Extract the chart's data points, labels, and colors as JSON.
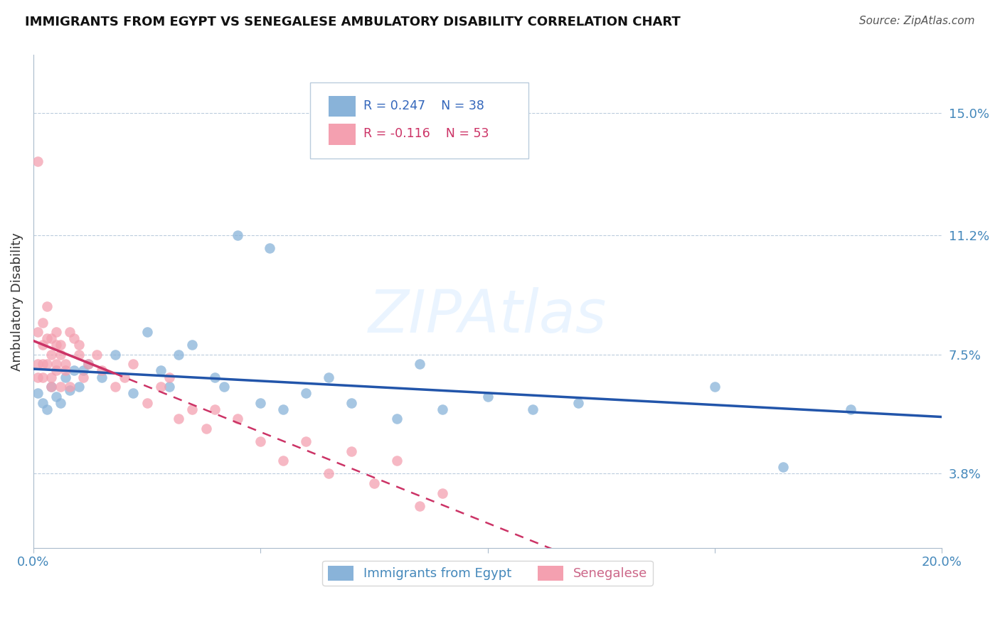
{
  "title": "IMMIGRANTS FROM EGYPT VS SENEGALESE AMBULATORY DISABILITY CORRELATION CHART",
  "source": "Source: ZipAtlas.com",
  "ylabel_label": "Ambulatory Disability",
  "xlim": [
    0.0,
    0.2
  ],
  "ylim": [
    0.015,
    0.168
  ],
  "xtick_positions": [
    0.0,
    0.05,
    0.1,
    0.15,
    0.2
  ],
  "xtick_labels": [
    "0.0%",
    "",
    "",
    "",
    "20.0%"
  ],
  "ytick_positions": [
    0.038,
    0.075,
    0.112,
    0.15
  ],
  "ytick_labels": [
    "3.8%",
    "7.5%",
    "11.2%",
    "15.0%"
  ],
  "legend1_r": "R = 0.247",
  "legend1_n": "N = 38",
  "legend2_r": "R = -0.116",
  "legend2_n": "N = 53",
  "blue_color": "#89B3D9",
  "pink_color": "#F4A0B0",
  "trend_blue": "#2255AA",
  "trend_pink": "#CC3366",
  "watermark": "ZIPAtlas",
  "egypt_x": [
    0.001,
    0.002,
    0.003,
    0.004,
    0.005,
    0.006,
    0.007,
    0.008,
    0.009,
    0.01,
    0.011,
    0.012,
    0.015,
    0.018,
    0.022,
    0.025,
    0.028,
    0.03,
    0.032,
    0.035,
    0.04,
    0.042,
    0.045,
    0.05,
    0.052,
    0.055,
    0.06,
    0.065,
    0.07,
    0.08,
    0.085,
    0.09,
    0.1,
    0.11,
    0.12,
    0.15,
    0.165,
    0.18
  ],
  "egypt_y": [
    0.063,
    0.06,
    0.058,
    0.065,
    0.062,
    0.06,
    0.068,
    0.064,
    0.07,
    0.065,
    0.07,
    0.072,
    0.068,
    0.075,
    0.063,
    0.082,
    0.07,
    0.065,
    0.075,
    0.078,
    0.068,
    0.065,
    0.112,
    0.06,
    0.108,
    0.058,
    0.063,
    0.068,
    0.06,
    0.055,
    0.072,
    0.058,
    0.062,
    0.058,
    0.06,
    0.065,
    0.04,
    0.058
  ],
  "senegal_x": [
    0.001,
    0.001,
    0.001,
    0.001,
    0.002,
    0.002,
    0.002,
    0.002,
    0.003,
    0.003,
    0.003,
    0.004,
    0.004,
    0.004,
    0.004,
    0.005,
    0.005,
    0.005,
    0.005,
    0.006,
    0.006,
    0.006,
    0.007,
    0.007,
    0.008,
    0.008,
    0.009,
    0.01,
    0.01,
    0.011,
    0.012,
    0.014,
    0.015,
    0.018,
    0.02,
    0.022,
    0.025,
    0.028,
    0.03,
    0.032,
    0.035,
    0.038,
    0.04,
    0.045,
    0.05,
    0.055,
    0.06,
    0.065,
    0.07,
    0.075,
    0.08,
    0.085,
    0.09
  ],
  "senegal_y": [
    0.135,
    0.082,
    0.072,
    0.068,
    0.078,
    0.085,
    0.072,
    0.068,
    0.08,
    0.09,
    0.072,
    0.068,
    0.075,
    0.08,
    0.065,
    0.078,
    0.072,
    0.082,
    0.07,
    0.075,
    0.065,
    0.078,
    0.07,
    0.072,
    0.065,
    0.082,
    0.08,
    0.075,
    0.078,
    0.068,
    0.072,
    0.075,
    0.07,
    0.065,
    0.068,
    0.072,
    0.06,
    0.065,
    0.068,
    0.055,
    0.058,
    0.052,
    0.058,
    0.055,
    0.048,
    0.042,
    0.048,
    0.038,
    0.045,
    0.035,
    0.042,
    0.028,
    0.032
  ]
}
